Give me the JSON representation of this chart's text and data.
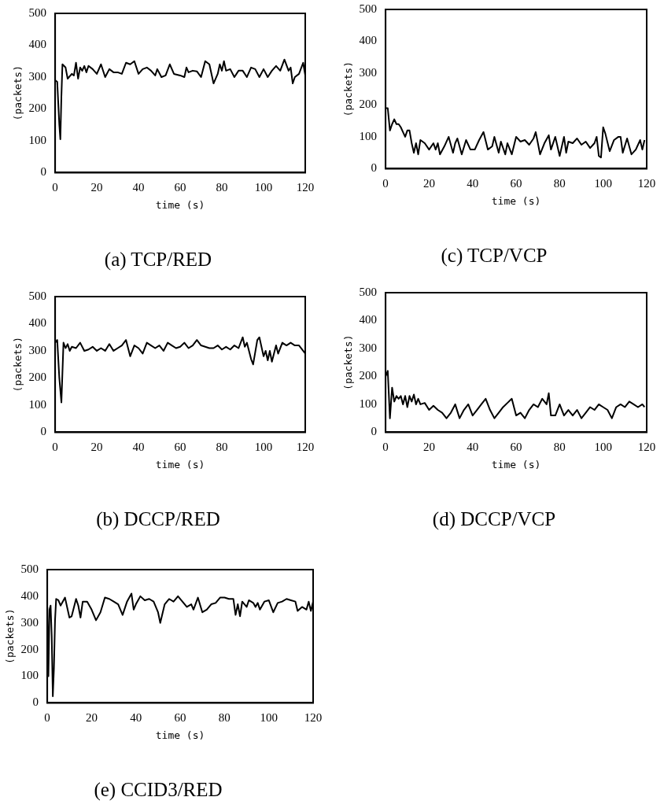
{
  "chart_data": [
    {
      "type": "line",
      "title": "(a) TCP/RED",
      "xlabel": "time (s)",
      "ylabel": "(packets)",
      "xlim": [
        0,
        120
      ],
      "xticks": [
        0,
        20,
        40,
        60,
        80,
        100,
        120
      ],
      "ylim": [
        0,
        500
      ],
      "yticks": [
        0,
        100,
        200,
        300,
        400,
        500
      ],
      "color": "#000000",
      "x": [
        0,
        1,
        2,
        2.5,
        3,
        3.5,
        5,
        6,
        8,
        9,
        10,
        11,
        12,
        13,
        14,
        15,
        16,
        18,
        20,
        22,
        24,
        26,
        28,
        30,
        32,
        34,
        36,
        38,
        40,
        42,
        44,
        46,
        48,
        49,
        51,
        53,
        55,
        57,
        60,
        62,
        63,
        64,
        66,
        68,
        70,
        72,
        74,
        76,
        78,
        79,
        80,
        81,
        82,
        84,
        86,
        88,
        90,
        92,
        94,
        96,
        98,
        100,
        102,
        104,
        106,
        108,
        110,
        112,
        113,
        114,
        115,
        117,
        119,
        120
      ],
      "values": [
        290,
        285,
        150,
        105,
        240,
        340,
        330,
        295,
        310,
        305,
        345,
        295,
        330,
        320,
        335,
        315,
        335,
        325,
        310,
        340,
        300,
        325,
        315,
        315,
        310,
        345,
        340,
        350,
        310,
        325,
        330,
        320,
        305,
        325,
        300,
        305,
        340,
        310,
        305,
        300,
        330,
        315,
        320,
        318,
        300,
        350,
        340,
        280,
        310,
        340,
        320,
        350,
        320,
        325,
        300,
        320,
        320,
        300,
        330,
        325,
        300,
        325,
        300,
        320,
        335,
        320,
        355,
        320,
        330,
        280,
        300,
        310,
        345,
        305
      ]
    },
    {
      "type": "line",
      "title": "(c) TCP/VCP",
      "xlabel": "time (s)",
      "ylabel": "(packets)",
      "xlim": [
        0,
        120
      ],
      "xticks": [
        0,
        20,
        40,
        60,
        80,
        100,
        120
      ],
      "ylim": [
        0,
        500
      ],
      "yticks": [
        0,
        100,
        200,
        300,
        400,
        500
      ],
      "color": "#000000",
      "x": [
        0,
        1,
        2,
        3,
        4,
        5,
        6,
        7,
        8,
        9,
        10,
        11,
        12,
        13,
        14,
        15,
        16,
        18,
        20,
        22,
        23,
        24,
        25,
        27,
        29,
        31,
        32,
        33,
        35,
        37,
        39,
        41,
        43,
        45,
        47,
        49,
        50,
        52,
        53,
        55,
        56,
        58,
        60,
        62,
        64,
        66,
        68,
        69,
        71,
        73,
        75,
        76,
        78,
        80,
        82,
        83,
        84,
        86,
        88,
        90,
        92,
        94,
        96,
        97,
        98,
        99,
        100,
        101,
        103,
        105,
        107,
        108,
        109,
        111,
        113,
        115,
        117,
        118,
        119
      ],
      "values": [
        190,
        190,
        120,
        140,
        155,
        140,
        140,
        130,
        115,
        100,
        120,
        120,
        80,
        50,
        80,
        45,
        90,
        80,
        60,
        80,
        60,
        80,
        45,
        70,
        100,
        50,
        80,
        95,
        45,
        90,
        60,
        60,
        90,
        115,
        60,
        70,
        100,
        50,
        85,
        45,
        80,
        45,
        100,
        85,
        90,
        75,
        95,
        115,
        45,
        80,
        105,
        60,
        100,
        40,
        100,
        50,
        85,
        80,
        95,
        75,
        85,
        65,
        80,
        100,
        40,
        35,
        130,
        110,
        55,
        90,
        100,
        100,
        50,
        95,
        45,
        60,
        90,
        60,
        90
      ]
    },
    {
      "type": "line",
      "title": "(b) DCCP/RED",
      "xlabel": "time (s)",
      "ylabel": "(packets)",
      "xlim": [
        0,
        120
      ],
      "xticks": [
        0,
        20,
        40,
        60,
        80,
        100,
        120
      ],
      "ylim": [
        0,
        500
      ],
      "yticks": [
        0,
        100,
        200,
        300,
        400,
        500
      ],
      "color": "#000000",
      "x": [
        0,
        1,
        2,
        3,
        4,
        5,
        6,
        7,
        8,
        10,
        12,
        14,
        16,
        18,
        20,
        22,
        24,
        26,
        28,
        30,
        32,
        34,
        36,
        38,
        40,
        42,
        44,
        46,
        48,
        50,
        52,
        54,
        56,
        58,
        60,
        62,
        64,
        66,
        68,
        70,
        72,
        74,
        76,
        78,
        80,
        82,
        84,
        86,
        88,
        90,
        91,
        92,
        94,
        95,
        97,
        98,
        100,
        101,
        102,
        103,
        104,
        106,
        107,
        109,
        111,
        113,
        115,
        117,
        119,
        120
      ],
      "values": [
        330,
        340,
        200,
        110,
        330,
        310,
        325,
        300,
        315,
        310,
        330,
        300,
        305,
        315,
        300,
        310,
        300,
        325,
        300,
        310,
        320,
        340,
        280,
        320,
        310,
        290,
        330,
        320,
        310,
        320,
        300,
        330,
        320,
        310,
        315,
        330,
        310,
        320,
        340,
        320,
        315,
        310,
        310,
        320,
        305,
        315,
        305,
        320,
        310,
        350,
        315,
        330,
        270,
        250,
        340,
        350,
        280,
        300,
        265,
        300,
        260,
        320,
        290,
        330,
        320,
        330,
        320,
        320,
        300,
        290
      ]
    },
    {
      "type": "line",
      "title": "(d) DCCP/VCP",
      "xlabel": "time (s)",
      "ylabel": "(packets)",
      "xlim": [
        0,
        120
      ],
      "xticks": [
        0,
        20,
        40,
        60,
        80,
        100,
        120
      ],
      "ylim": [
        0,
        500
      ],
      "yticks": [
        0,
        100,
        200,
        300,
        400,
        500
      ],
      "color": "#000000",
      "x": [
        0,
        1,
        2,
        3,
        4,
        5,
        6,
        7,
        8,
        9,
        10,
        11,
        12,
        13,
        14,
        15,
        16,
        18,
        20,
        22,
        24,
        26,
        28,
        30,
        32,
        34,
        36,
        38,
        40,
        42,
        44,
        46,
        48,
        50,
        52,
        54,
        56,
        58,
        60,
        62,
        64,
        66,
        68,
        70,
        72,
        74,
        75,
        76,
        78,
        80,
        82,
        84,
        86,
        88,
        90,
        92,
        94,
        96,
        98,
        100,
        102,
        104,
        106,
        108,
        110,
        112,
        114,
        116,
        118,
        119
      ],
      "values": [
        200,
        220,
        50,
        160,
        110,
        130,
        120,
        130,
        100,
        130,
        90,
        130,
        110,
        135,
        100,
        120,
        100,
        105,
        80,
        95,
        80,
        70,
        50,
        70,
        100,
        50,
        80,
        100,
        60,
        80,
        100,
        120,
        80,
        50,
        70,
        90,
        105,
        120,
        60,
        70,
        50,
        80,
        100,
        90,
        120,
        100,
        140,
        60,
        60,
        100,
        60,
        80,
        60,
        80,
        50,
        70,
        90,
        80,
        100,
        90,
        80,
        50,
        90,
        100,
        90,
        110,
        100,
        90,
        100,
        90
      ]
    },
    {
      "type": "line",
      "title": "(e) CCID3/RED",
      "xlabel": "time (s)",
      "ylabel": "(packets)",
      "xlim": [
        0,
        120
      ],
      "xticks": [
        0,
        20,
        40,
        60,
        80,
        100,
        120
      ],
      "ylim": [
        0,
        500
      ],
      "yticks": [
        0,
        100,
        200,
        300,
        400,
        500
      ],
      "color": "#000000",
      "x": [
        0,
        0.5,
        1,
        1.5,
        2,
        2.5,
        3,
        3.5,
        4,
        5,
        6,
        8,
        10,
        11,
        13,
        14,
        15,
        16,
        18,
        20,
        22,
        24,
        26,
        28,
        30,
        32,
        34,
        36,
        38,
        39,
        40,
        42,
        44,
        46,
        48,
        50,
        51,
        53,
        55,
        57,
        59,
        61,
        63,
        65,
        66,
        68,
        70,
        72,
        74,
        76,
        78,
        80,
        82,
        84,
        85,
        86,
        87,
        88,
        90,
        91,
        93,
        94,
        95,
        96,
        98,
        100,
        102,
        104,
        106,
        108,
        110,
        112,
        113,
        115,
        117,
        118,
        119,
        120
      ],
      "values": [
        360,
        100,
        350,
        365,
        250,
        25,
        130,
        310,
        390,
        385,
        365,
        395,
        320,
        325,
        390,
        365,
        320,
        380,
        380,
        350,
        310,
        340,
        395,
        390,
        380,
        370,
        330,
        380,
        410,
        350,
        370,
        400,
        385,
        390,
        380,
        340,
        300,
        370,
        390,
        380,
        400,
        380,
        360,
        370,
        350,
        395,
        340,
        350,
        370,
        375,
        395,
        395,
        390,
        390,
        330,
        370,
        325,
        380,
        360,
        385,
        375,
        360,
        375,
        350,
        380,
        385,
        340,
        375,
        380,
        390,
        385,
        380,
        345,
        360,
        350,
        380,
        345,
        380
      ]
    }
  ]
}
